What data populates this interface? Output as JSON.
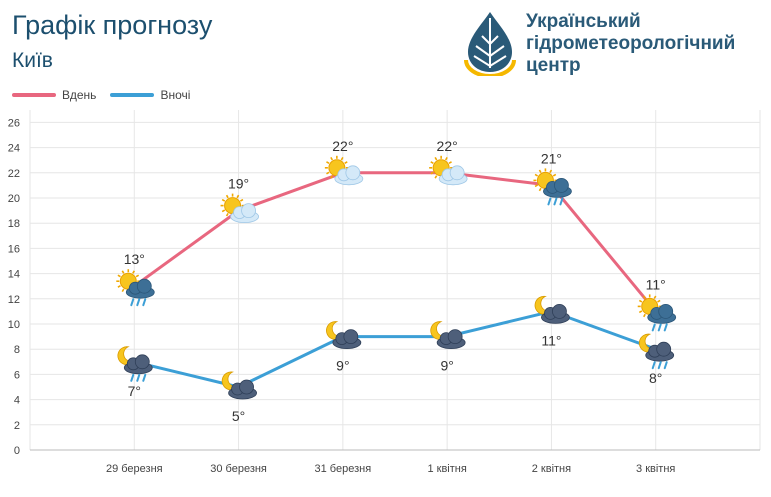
{
  "header": {
    "title": "Графік прогнозу",
    "city": "Київ"
  },
  "logo": {
    "text": "Український\nгідрометеорологічний\nцентр",
    "icon": "water-drop-sun-logo-icon"
  },
  "colors": {
    "day": "#e8677f",
    "night": "#3c9fd6",
    "grid": "#e6e6e6",
    "text": "#333333"
  },
  "chart_data": {
    "type": "line",
    "categories": [
      "29 березня",
      "30 березня",
      "31 березня",
      "1 квітня",
      "2 квітня",
      "3 квітня"
    ],
    "series": [
      {
        "name": "Вдень",
        "values": [
          13,
          19,
          22,
          22,
          21,
          11
        ],
        "labels": [
          "13°",
          "19°",
          "22°",
          "22°",
          "21°",
          "11°"
        ],
        "icons": [
          "sun-cloud-rain-icon",
          "sun-cloud-icon",
          "sun-cloud-icon",
          "sun-cloud-icon",
          "sun-cloud-rain-icon",
          "sun-cloud-rain-icon"
        ]
      },
      {
        "name": "Вночі",
        "values": [
          7,
          5,
          9,
          9,
          11,
          8
        ],
        "labels": [
          "7°",
          "5°",
          "9°",
          "9°",
          "11°",
          "8°"
        ],
        "icons": [
          "moon-cloud-rain-icon",
          "moon-cloud-icon",
          "moon-cloud-icon",
          "moon-cloud-icon",
          "moon-cloud-icon",
          "moon-cloud-rain-icon"
        ]
      }
    ],
    "y_ticks": [
      "0",
      "2",
      "4",
      "6",
      "8",
      "10",
      "12",
      "14",
      "16",
      "18",
      "20",
      "22",
      "24",
      "26"
    ],
    "ylim": [
      0,
      27
    ],
    "grid": true,
    "legend_position": "top-left"
  }
}
